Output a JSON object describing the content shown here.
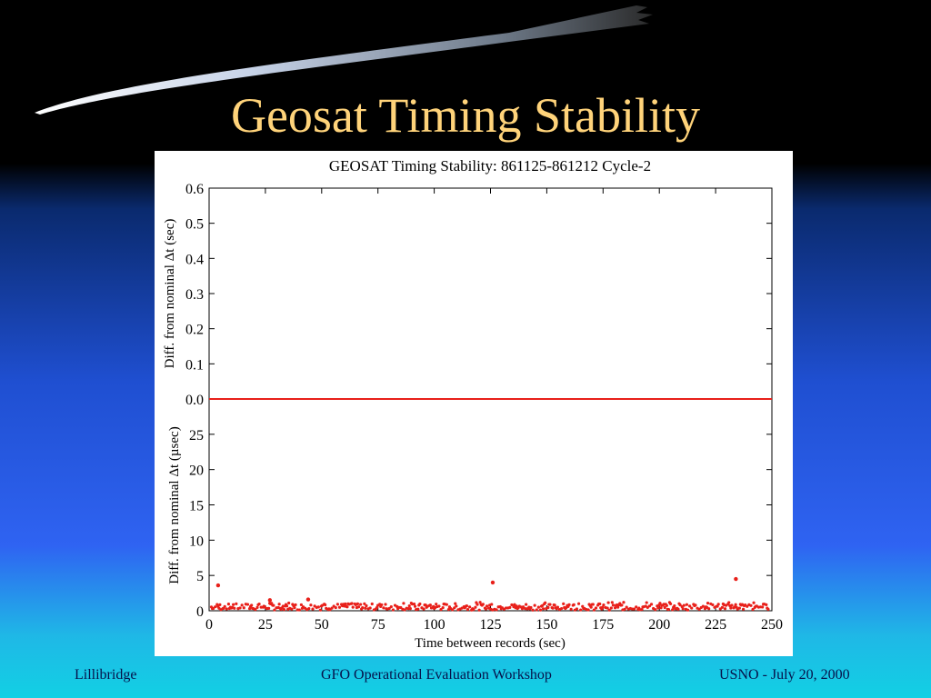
{
  "slide": {
    "title": "Geosat Timing Stability",
    "title_color": "#ffd37a"
  },
  "footer": {
    "left": "Lillibridge",
    "center": "GFO Operational Evaluation Workshop",
    "right": "USNO - July 20, 2000"
  },
  "chart_data": [
    {
      "type": "scatter",
      "title": "GEOSAT Timing Stability: 861125-861212 Cycle-2",
      "xlabel": "Time between records (sec)",
      "ylabel": "Diff. from nominal Δt (sec)",
      "xlim": [
        0,
        250
      ],
      "ylim": [
        0,
        0.6
      ],
      "yticks": [
        "0.0",
        "0.1",
        "0.2",
        "0.3",
        "0.4",
        "0.5",
        "0.6"
      ],
      "xticks": [
        "0",
        "25",
        "50",
        "75",
        "100",
        "125",
        "150",
        "175",
        "200",
        "225",
        "250"
      ],
      "grid": false,
      "series": [
        {
          "color": "#e8201a",
          "x_range": [
            0,
            250
          ],
          "y_constant": 0.0
        }
      ]
    },
    {
      "type": "scatter",
      "title": "",
      "xlabel": "Time between records (sec)",
      "ylabel": "Diff. from nominal Δt (µsec)",
      "xlim": [
        0,
        250
      ],
      "ylim": [
        0,
        30
      ],
      "yticks": [
        "0",
        "5",
        "10",
        "15",
        "20",
        "25"
      ],
      "xticks": [
        "0",
        "25",
        "50",
        "75",
        "100",
        "125",
        "150",
        "175",
        "200",
        "225",
        "250"
      ],
      "grid": false,
      "series": [
        {
          "color": "#e8201a",
          "baseline_band": [
            0,
            1
          ],
          "points": [
            [
              4,
              3.6
            ],
            [
              27,
              1.5
            ],
            [
              44,
              1.6
            ],
            [
              126,
              4.0
            ],
            [
              234,
              4.5
            ]
          ]
        }
      ]
    }
  ]
}
